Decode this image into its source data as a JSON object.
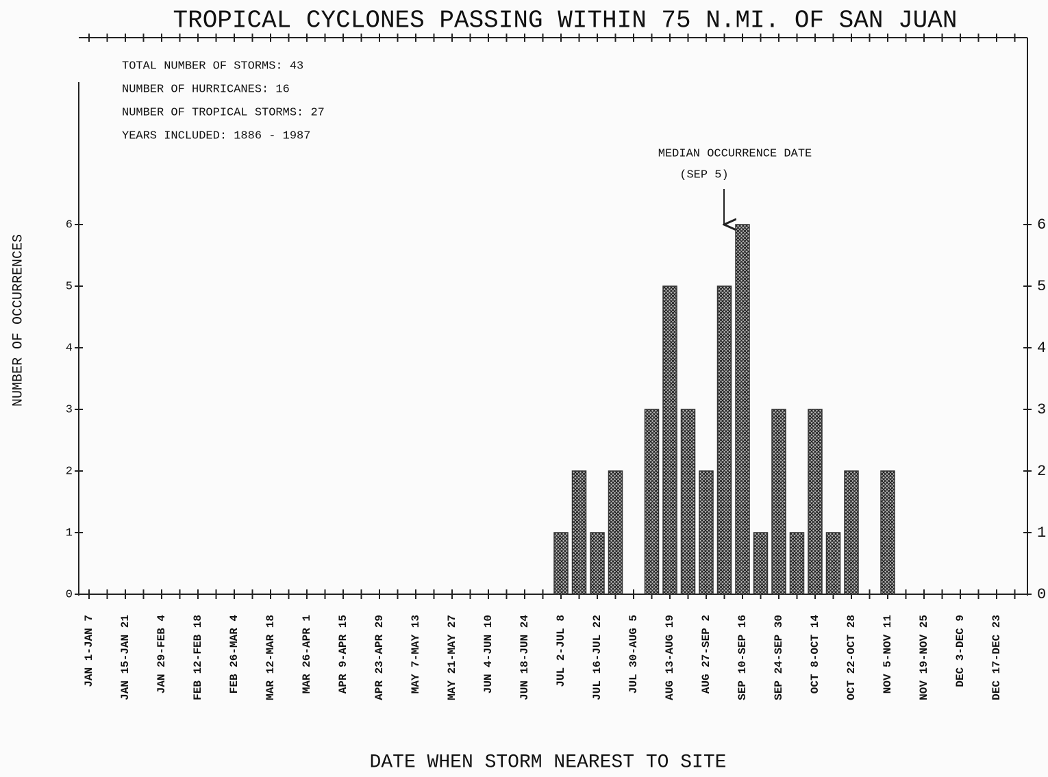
{
  "chart_data": {
    "type": "bar",
    "title": "TROPICAL CYCLONES PASSING WITHIN 75 N.MI. OF SAN JUAN",
    "xlabel": "DATE WHEN STORM NEAREST TO SITE",
    "ylabel": "NUMBER OF OCCURRENCES",
    "annotations": [
      "TOTAL NUMBER OF STORMS: 43",
      "NUMBER OF HURRICANES: 16",
      "NUMBER OF TROPICAL STORMS: 27",
      "YEARS INCLUDED: 1886 - 1987"
    ],
    "median_label": [
      "MEDIAN OCCURRENCE DATE",
      "(SEP 5)"
    ],
    "categories": [
      "JAN 1-JAN 7",
      null,
      "JAN 15-JAN 21",
      null,
      "JAN 29-FEB 4",
      null,
      "FEB 12-FEB 18",
      null,
      "FEB 26-MAR 4",
      null,
      "MAR 12-MAR 18",
      null,
      "MAR 26-APR 1",
      null,
      "APR 9-APR 15",
      null,
      "APR 23-APR 29",
      null,
      "MAY 7-MAY 13",
      null,
      "MAY 21-MAY 27",
      null,
      "JUN 4-JUN 10",
      null,
      "JUN 18-JUN 24",
      null,
      "JUL 2-JUL 8",
      null,
      "JUL 16-JUL 22",
      null,
      "JUL 30-AUG 5",
      null,
      "AUG 13-AUG 19",
      null,
      "AUG 27-SEP 2",
      null,
      "SEP 10-SEP 16",
      null,
      "SEP 24-SEP 30",
      null,
      "OCT 8-OCT 14",
      null,
      "OCT 22-OCT 28",
      null,
      "NOV 5-NOV 11",
      null,
      "NOV 19-NOV 25",
      null,
      "DEC 3-DEC 9",
      null,
      "DEC 17-DEC 23",
      null
    ],
    "values": [
      0,
      0,
      0,
      0,
      0,
      0,
      0,
      0,
      0,
      0,
      0,
      0,
      0,
      0,
      0,
      0,
      0,
      0,
      0,
      0,
      0,
      0,
      0,
      0,
      0,
      0,
      1,
      2,
      1,
      2,
      0,
      3,
      5,
      3,
      2,
      5,
      6,
      1,
      3,
      1,
      3,
      1,
      2,
      0,
      2,
      0,
      0,
      0,
      0,
      0,
      0,
      0
    ],
    "color": "#333333",
    "ylim": [
      0,
      6.5
    ],
    "yticks": [
      0,
      1,
      2,
      3,
      4,
      5,
      6
    ],
    "y2lim": [
      0,
      6.5
    ],
    "y2ticks": [
      0,
      1,
      2,
      3,
      4,
      5,
      6
    ]
  }
}
